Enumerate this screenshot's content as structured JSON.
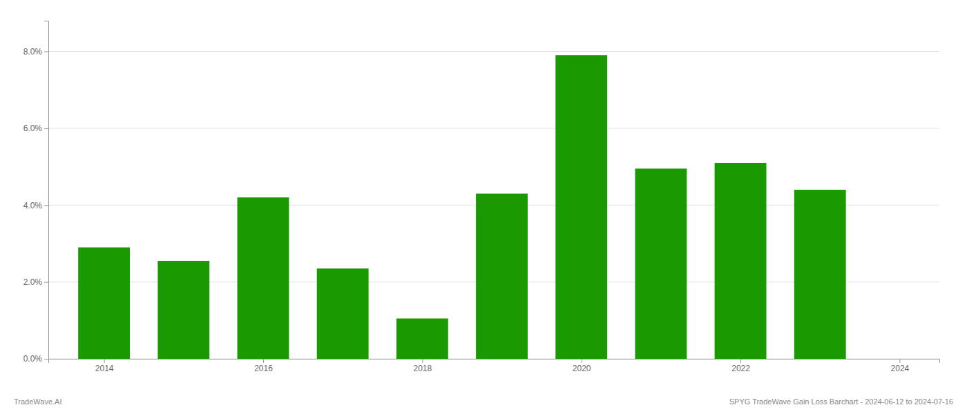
{
  "chart_data": {
    "type": "bar",
    "x": [
      2014,
      2015,
      2016,
      2017,
      2018,
      2019,
      2020,
      2021,
      2022,
      2023
    ],
    "values": [
      0.029,
      0.0255,
      0.042,
      0.0235,
      0.0105,
      0.043,
      0.079,
      0.0495,
      0.051,
      0.044
    ],
    "color": "#1a9a00",
    "xlim": [
      2013.3,
      2024.5
    ],
    "xticks": [
      2014,
      2016,
      2018,
      2020,
      2022,
      2024
    ],
    "ylim": [
      0,
      0.088
    ],
    "yticks": [
      {
        "value": 0.0,
        "label": "0.0%"
      },
      {
        "value": 0.02,
        "label": "2.0%"
      },
      {
        "value": 0.04,
        "label": "4.0%"
      },
      {
        "value": 0.06,
        "label": "6.0%"
      },
      {
        "value": 0.08,
        "label": "8.0%"
      }
    ],
    "grid": true,
    "annotations": [
      "TradeWave.AI",
      "SPYG TradeWave Gain Loss Barchart - 2024-06-12 to 2024-07-16"
    ]
  }
}
